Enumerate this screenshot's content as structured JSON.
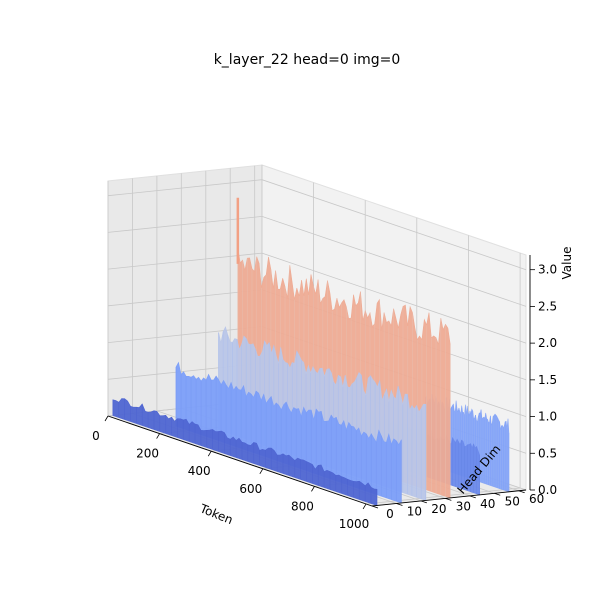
{
  "chart_data": {
    "type": "surface3d",
    "title": "k_layer_22 head=0 img=0",
    "xlabel": "Token",
    "ylabel": "Head Dim",
    "zlabel": "Value",
    "xlim": [
      0,
      1023
    ],
    "ylim": [
      0,
      63
    ],
    "zlim": [
      0,
      3.2
    ],
    "x_ticks": [
      0,
      200,
      400,
      600,
      800,
      1000
    ],
    "y_ticks": [
      0,
      10,
      20,
      30,
      40,
      50,
      60
    ],
    "z_ticks": [
      "0.0",
      "0.5",
      "1.0",
      "1.5",
      "2.0",
      "2.5",
      "3.0"
    ],
    "colormap": "coolwarm",
    "grid": true,
    "bands": [
      {
        "head_dim": 2,
        "token_start": 0,
        "token_end": 1023,
        "value": 0.25
      },
      {
        "head_dim": 12,
        "token_start": 150,
        "token_end": 1023,
        "value": 0.8
      },
      {
        "head_dim": 22,
        "token_start": 220,
        "token_end": 1023,
        "value": 1.3
      },
      {
        "head_dim": 32,
        "token_start": 200,
        "token_end": 1023,
        "value": 2.2
      },
      {
        "head_dim": 44,
        "token_start": 500,
        "token_end": 1023,
        "value": 0.6
      },
      {
        "head_dim": 56,
        "token_start": 700,
        "token_end": 1023,
        "value": 0.9
      }
    ],
    "peak": {
      "token": 200,
      "head_dim": 32,
      "value": 3.1
    }
  }
}
